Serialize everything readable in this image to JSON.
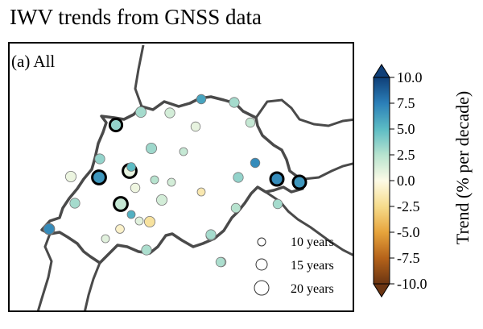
{
  "title": "IWV trends from GNSS data",
  "panel_label": "(a) All",
  "legend": [
    {
      "label": "10 years",
      "years": 10
    },
    {
      "label": "15 years",
      "years": 15
    },
    {
      "label": "20 years",
      "years": 20
    }
  ],
  "colorbar": {
    "label": "Trend (% per decade)",
    "range": [
      -10.0,
      10.0
    ],
    "ticks": [
      "10.0",
      "7.5",
      "5.0",
      "2.5",
      "0.0",
      "-2.5",
      "-5.0",
      "-7.5",
      "-10.0"
    ],
    "colors": [
      "#6b3512",
      "#b5631a",
      "#e7a43c",
      "#f6dc8c",
      "#fdfbe6",
      "#b7e3cf",
      "#5cbcc4",
      "#2b7fb8",
      "#0f3f78"
    ]
  },
  "stations": [
    {
      "years": 14,
      "trend": 3.0,
      "bold": false
    },
    {
      "years": 13,
      "trend": 1.5,
      "bold": false
    },
    {
      "years": 12,
      "trend": 6.0,
      "bold": false
    },
    {
      "years": 13,
      "trend": 3.0,
      "bold": false
    },
    {
      "years": 14,
      "trend": 3.5,
      "bold": true
    },
    {
      "years": 12,
      "trend": 0.8,
      "bold": false
    },
    {
      "years": 12,
      "trend": 2.0,
      "bold": false
    },
    {
      "years": 14,
      "trend": 3.2,
      "bold": false
    },
    {
      "years": 13,
      "trend": 3.5,
      "bold": false
    },
    {
      "years": 14,
      "trend": 0.6,
      "bold": false
    },
    {
      "years": 16,
      "trend": 6.5,
      "bold": true
    },
    {
      "years": 16,
      "trend": 0.8,
      "bold": true
    },
    {
      "years": 11,
      "trend": 5.0,
      "bold": false
    },
    {
      "years": 10,
      "trend": 1.5,
      "bold": false
    },
    {
      "years": 10,
      "trend": 2.0,
      "bold": false
    },
    {
      "years": 12,
      "trend": 0.5,
      "bold": false
    },
    {
      "years": 10,
      "trend": -1.5,
      "bold": false
    },
    {
      "years": 13,
      "trend": 3.5,
      "bold": false
    },
    {
      "years": 14,
      "trend": 1.5,
      "bold": false
    },
    {
      "years": 13,
      "trend": 3.0,
      "bold": false
    },
    {
      "years": 16,
      "trend": 2.0,
      "bold": true
    },
    {
      "years": 10,
      "trend": 5.5,
      "bold": false
    },
    {
      "years": 10,
      "trend": 1.0,
      "bold": false
    },
    {
      "years": 11,
      "trend": -0.8,
      "bold": false
    },
    {
      "years": 14,
      "trend": -2.0,
      "bold": false
    },
    {
      "years": 10,
      "trend": 1.0,
      "bold": false
    },
    {
      "years": 12,
      "trend": 0.5,
      "bold": false
    },
    {
      "years": 10,
      "trend": 2.5,
      "bold": false
    },
    {
      "years": 13,
      "trend": 3.2,
      "bold": false
    },
    {
      "years": 12,
      "trend": 1.2,
      "bold": false
    },
    {
      "years": 11,
      "trend": 2.5,
      "bold": false
    },
    {
      "years": 12,
      "trend": 7.0,
      "bold": false
    },
    {
      "years": 15,
      "trend": 5.5,
      "bold": false
    },
    {
      "years": 15,
      "trend": 7.0,
      "bold": true
    },
    {
      "years": 15,
      "trend": 6.5,
      "bold": true
    },
    {
      "years": 12,
      "trend": 3.0,
      "bold": false
    },
    {
      "years": 12,
      "trend": 2.5,
      "bold": false
    },
    {
      "years": 13,
      "trend": 3.0,
      "bold": false
    },
    {
      "years": 14,
      "trend": 7.0,
      "bold": false
    },
    {
      "years": 13,
      "trend": 2.8,
      "bold": false
    },
    {
      "years": 12,
      "trend": 2.8,
      "bold": false
    }
  ]
}
